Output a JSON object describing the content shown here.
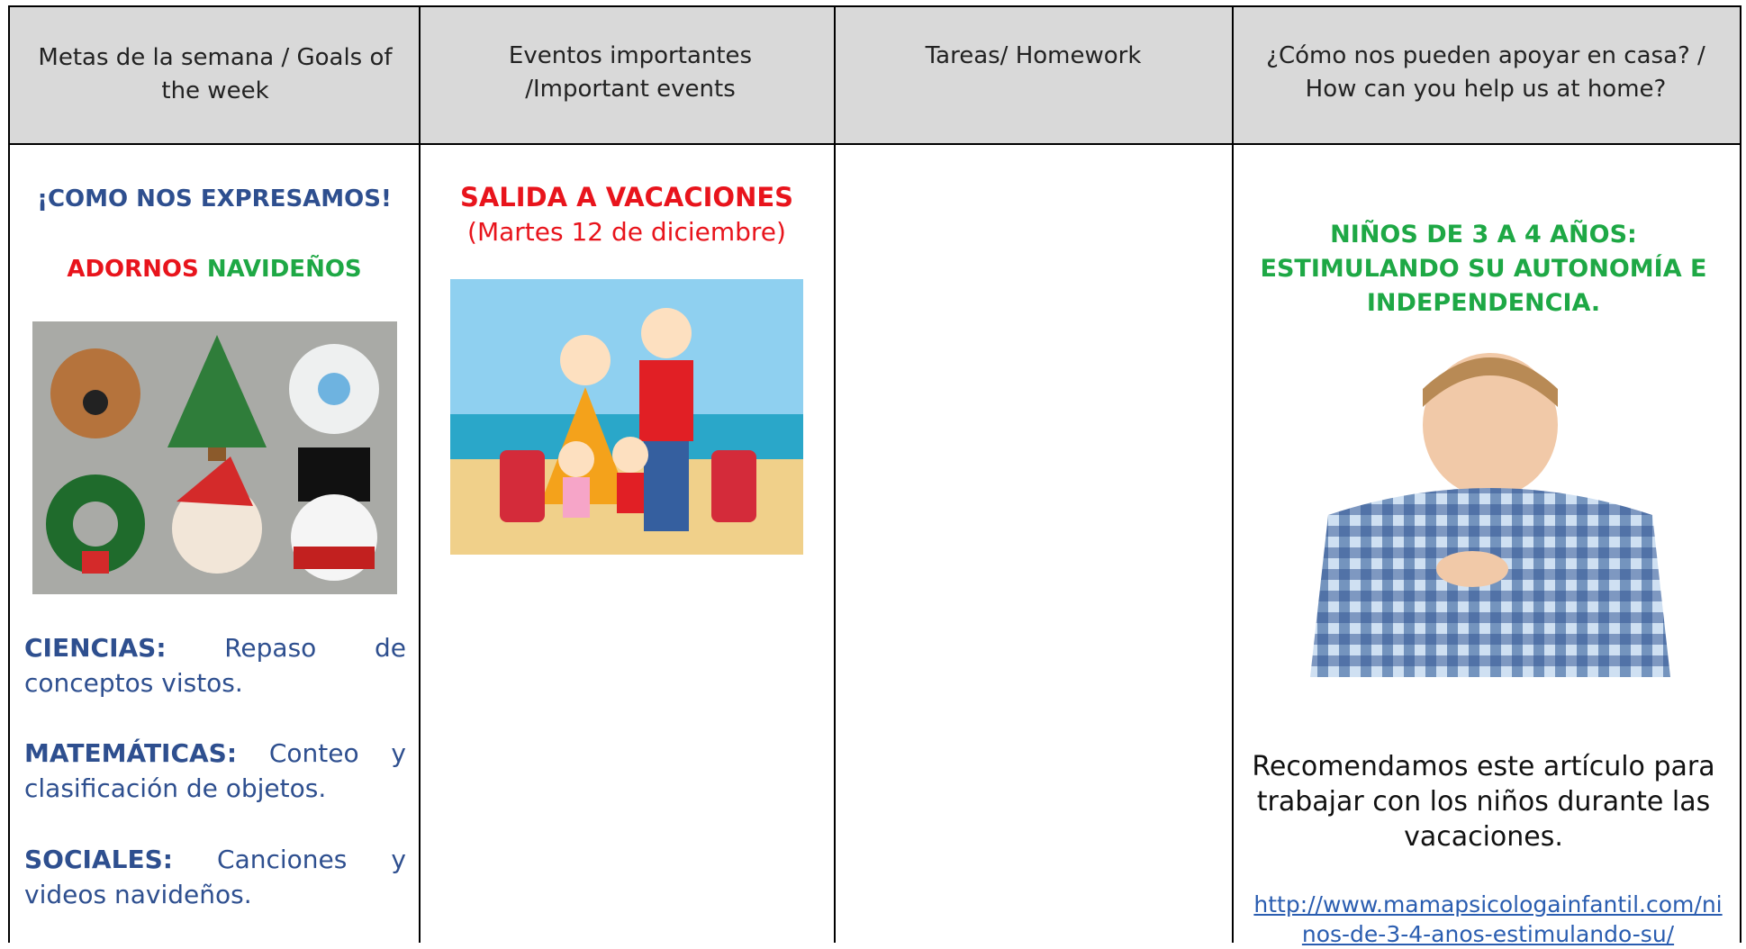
{
  "table": {
    "headers": [
      "Metas de la semana / Goals of the week",
      "Eventos importantes /Important events",
      "Tareas/ Homework",
      "¿Cómo nos pueden apoyar en casa? / How can you help us at home?"
    ],
    "goals": {
      "title": "¡COMO NOS EXPRESAMOS!",
      "subtitle_red": "ADORNOS",
      "subtitle_green": "NAVIDEÑOS",
      "items": [
        {
          "label": "CIENCIAS:",
          "text": "Repaso de conceptos vistos."
        },
        {
          "label": "MATEMÁTICAS:",
          "text": "Conteo y clasificación de objetos."
        },
        {
          "label": "SOCIALES:",
          "text": "Canciones y videos navideños."
        }
      ]
    },
    "events": {
      "title": "SALIDA A VACACIONES",
      "date": "(Martes 12 de diciembre)"
    },
    "help": {
      "title": "NIÑOS DE 3 A 4 AÑOS: ESTIMULANDO SU AUTONOMÍA E INDEPENDENCIA.",
      "text": "Recomendamos este artículo para trabajar con los niños durante las vacaciones.",
      "link": "http://www.mamapsicologainfantil.com/ninos-de-3-4-anos-estimulando-su/"
    }
  }
}
